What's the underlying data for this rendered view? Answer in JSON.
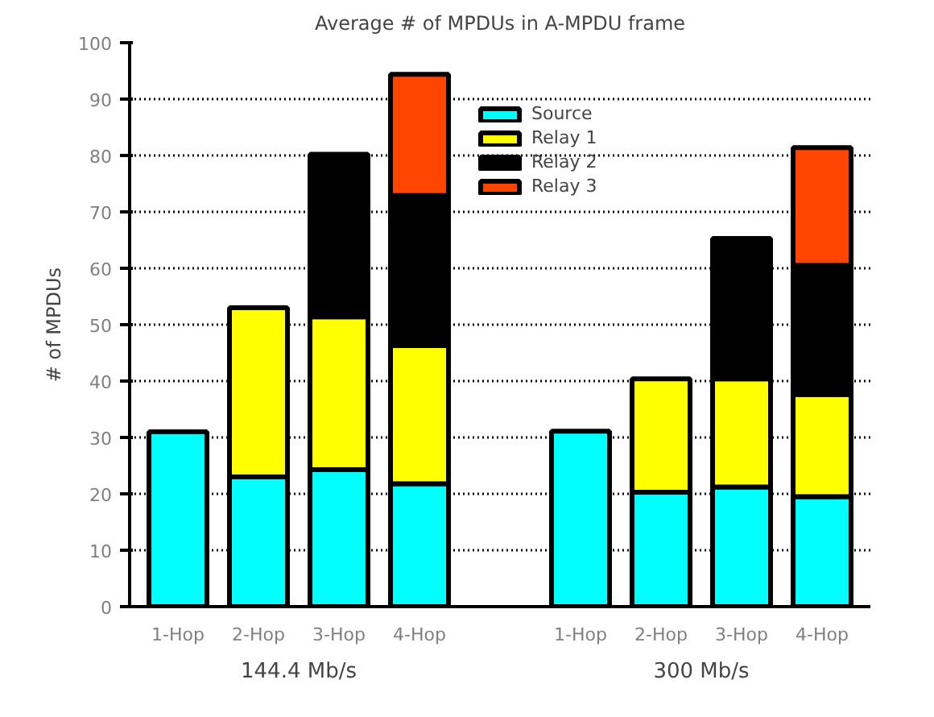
{
  "chart_data": {
    "type": "bar",
    "title": "Average # of MPDUs in A-MPDU frame",
    "ylabel": "# of MPDUs",
    "categories": [
      "1-Hop",
      "2-Hop",
      "3-Hop",
      "4-Hop",
      null,
      "1-Hop",
      "2-Hop",
      "3-Hop",
      "4-Hop"
    ],
    "annotations": [
      "144.4 Mb/s",
      "300 Mb/s"
    ],
    "stacked": true,
    "series": [
      {
        "name": "Source",
        "color": "#00ffff",
        "values": [
          31,
          23,
          24.3,
          21.8,
          null,
          31.1,
          20.3,
          21.2,
          19.5
        ]
      },
      {
        "name": "Relay 1",
        "color": "#ffff00",
        "values": [
          null,
          30,
          27.1,
          24.5,
          null,
          null,
          20.1,
          19.2,
          18.1
        ]
      },
      {
        "name": "Relay 2",
        "color": "#000000",
        "values": [
          null,
          null,
          28.8,
          26.6,
          null,
          null,
          null,
          24.9,
          22.9
        ]
      },
      {
        "name": "Relay 3",
        "color": "#ff4500",
        "values": [
          null,
          null,
          null,
          21.5,
          null,
          null,
          null,
          null,
          20.9
        ]
      }
    ],
    "ylim": [
      0,
      100
    ],
    "yticks": [
      0,
      10,
      20,
      30,
      40,
      50,
      60,
      70,
      80,
      90,
      100
    ],
    "grid": "y",
    "legend": "top"
  }
}
